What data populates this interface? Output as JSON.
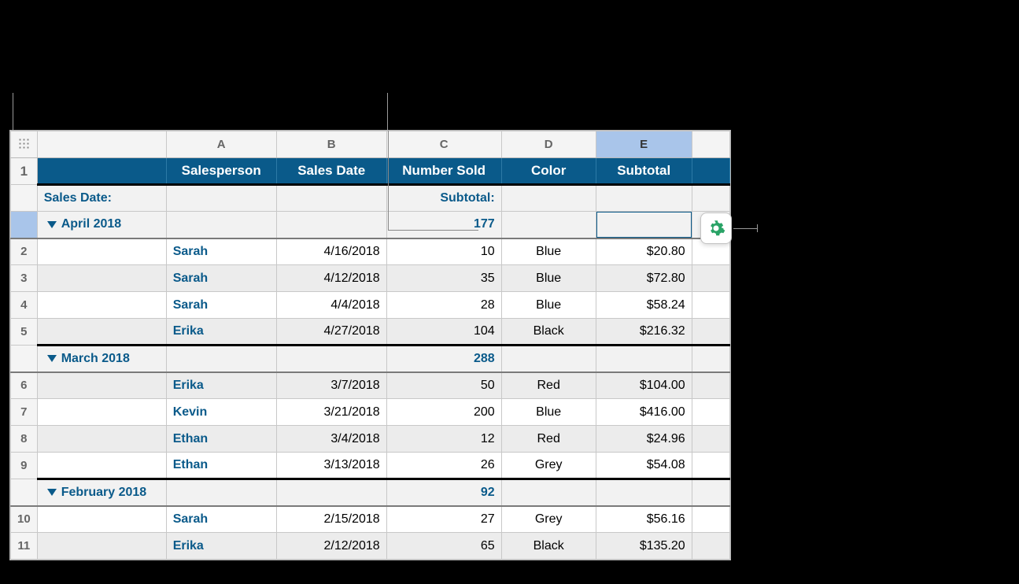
{
  "columns": {
    "letters": [
      "A",
      "B",
      "C",
      "D",
      "E"
    ],
    "selected_index": 4,
    "headers": [
      "Salesperson",
      "Sales Date",
      "Number Sold",
      "Color",
      "Subtotal"
    ]
  },
  "summary_labels": {
    "group_by": "Sales Date:",
    "aggregate": "Subtotal:"
  },
  "groups": [
    {
      "name": "April 2018",
      "sum_number_sold": "177",
      "highlight_rownum": true,
      "selected_cell_col": "E",
      "rows": [
        {
          "n": "2",
          "salesperson": "Sarah",
          "date": "4/16/2018",
          "sold": "10",
          "color": "Blue",
          "subtotal": "$20.80",
          "alt": false
        },
        {
          "n": "3",
          "salesperson": "Sarah",
          "date": "4/12/2018",
          "sold": "35",
          "color": "Blue",
          "subtotal": "$72.80",
          "alt": true
        },
        {
          "n": "4",
          "salesperson": "Sarah",
          "date": "4/4/2018",
          "sold": "28",
          "color": "Blue",
          "subtotal": "$58.24",
          "alt": false
        },
        {
          "n": "5",
          "salesperson": "Erika",
          "date": "4/27/2018",
          "sold": "104",
          "color": "Black",
          "subtotal": "$216.32",
          "alt": true
        }
      ]
    },
    {
      "name": "March 2018",
      "sum_number_sold": "288",
      "rows": [
        {
          "n": "6",
          "salesperson": "Erika",
          "date": "3/7/2018",
          "sold": "50",
          "color": "Red",
          "subtotal": "$104.00",
          "alt": true
        },
        {
          "n": "7",
          "salesperson": "Kevin",
          "date": "3/21/2018",
          "sold": "200",
          "color": "Blue",
          "subtotal": "$416.00",
          "alt": false
        },
        {
          "n": "8",
          "salesperson": "Ethan",
          "date": "3/4/2018",
          "sold": "12",
          "color": "Red",
          "subtotal": "$24.96",
          "alt": true
        },
        {
          "n": "9",
          "salesperson": "Ethan",
          "date": "3/13/2018",
          "sold": "26",
          "color": "Grey",
          "subtotal": "$54.08",
          "alt": false
        }
      ]
    },
    {
      "name": "February 2018",
      "sum_number_sold": "92",
      "rows": [
        {
          "n": "10",
          "salesperson": "Sarah",
          "date": "2/15/2018",
          "sold": "27",
          "color": "Grey",
          "subtotal": "$56.16",
          "alt": false
        },
        {
          "n": "11",
          "salesperson": "Erika",
          "date": "2/12/2018",
          "sold": "65",
          "color": "Black",
          "subtotal": "$135.20",
          "alt": true
        }
      ]
    }
  ],
  "colors": {
    "header_bg": "#0a5a8a",
    "header_fg": "#ffffff",
    "accent": "#0a5a8a",
    "selected_col_bg": "#a9c5ea",
    "row_alt_bg": "#ececec",
    "grid": "#c8c8c8",
    "gear": "#29a366"
  },
  "row1_label": "1"
}
